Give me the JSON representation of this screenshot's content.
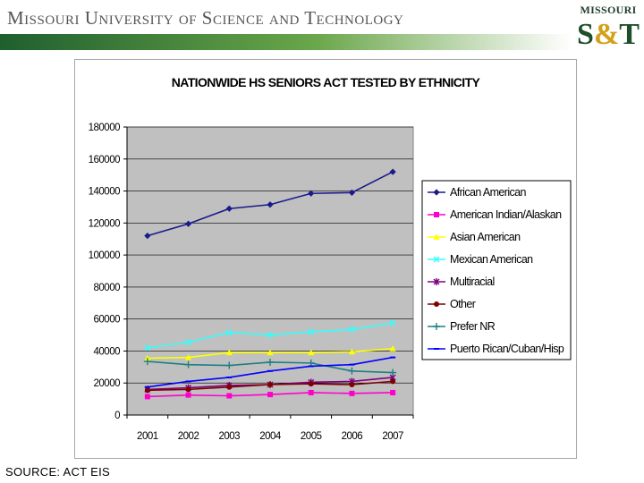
{
  "header": {
    "title": "Missouri University of Science and Technology",
    "logo_top": "MISSOURI",
    "logo_main": "S&T",
    "bar_gradient": [
      "#1f5f2e",
      "#6aa64a",
      "#ffffff"
    ]
  },
  "source": "SOURCE: ACT EIS",
  "chart_data": {
    "type": "line",
    "title": "NATIONWIDE HS SENIORS ACT TESTED BY ETHNICITY",
    "categories": [
      "2001",
      "2002",
      "2003",
      "2004",
      "2005",
      "2006",
      "2007"
    ],
    "ylim": [
      0,
      180000
    ],
    "yticks": [
      0,
      20000,
      40000,
      60000,
      80000,
      100000,
      120000,
      140000,
      160000,
      180000
    ],
    "grid": true,
    "legend_position": "right",
    "plot_background": "#c0c0c0",
    "series": [
      {
        "name": "African American",
        "color": "#1a1a8c",
        "marker": "diamond",
        "values": [
          112000,
          119500,
          129000,
          131500,
          138500,
          139000,
          152000
        ]
      },
      {
        "name": "American Indian/Alaskan",
        "color": "#ff00cc",
        "marker": "square",
        "values": [
          11500,
          12500,
          12000,
          12800,
          14000,
          13500,
          14000
        ]
      },
      {
        "name": "Asian American",
        "color": "#ffff00",
        "marker": "triangle",
        "values": [
          35500,
          36000,
          39000,
          39000,
          39000,
          39500,
          41500
        ]
      },
      {
        "name": "Mexican American",
        "color": "#33ffff",
        "marker": "x",
        "values": [
          42000,
          45500,
          51500,
          50000,
          52000,
          53500,
          57500
        ]
      },
      {
        "name": "Multiracial",
        "color": "#800080",
        "marker": "star",
        "values": [
          16000,
          17000,
          18500,
          19000,
          20500,
          21000,
          23500
        ]
      },
      {
        "name": "Other",
        "color": "#800000",
        "marker": "circle",
        "values": [
          15500,
          16000,
          17500,
          19000,
          19500,
          19000,
          21000
        ]
      },
      {
        "name": "Prefer NR",
        "color": "#1f7f7f",
        "marker": "plus",
        "values": [
          33500,
          31500,
          31000,
          33000,
          32500,
          27500,
          26500
        ]
      },
      {
        "name": "Puerto Rican/Cuban/Hisp",
        "color": "#0000ff",
        "marker": "dash",
        "values": [
          17500,
          21000,
          23500,
          27500,
          30500,
          31500,
          36000
        ]
      }
    ]
  }
}
